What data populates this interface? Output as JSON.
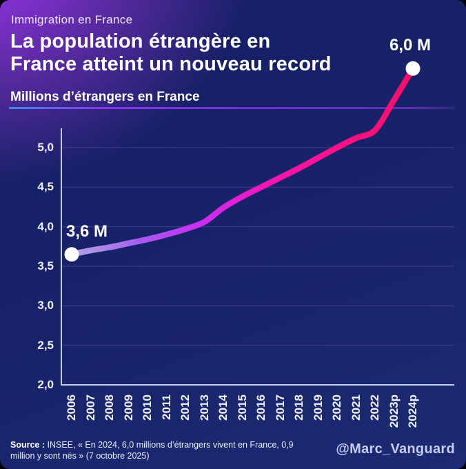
{
  "card": {
    "kicker": "Immigration en France",
    "title_line1": "La population étrangère en",
    "title_line2": "France atteint un nouveau record",
    "subtitle": "Millions d’étrangers en France",
    "source_label": "Source :",
    "source_text": " INSEE, « En 2024, 6,0 millions d’étrangers vivent en France, 0,9 million y sont nés » (7 octobre 2025)",
    "handle": "@Marc_Vanguard"
  },
  "chart_data": {
    "type": "line",
    "title": "Millions d’étrangers en France",
    "categories": [
      "2006",
      "2007",
      "2008",
      "2009",
      "2010",
      "2011",
      "2012",
      "2013",
      "2014",
      "2015",
      "2016",
      "2017",
      "2018",
      "2019",
      "2020",
      "2021",
      "2022",
      "2023p",
      "2024p"
    ],
    "values": [
      3.65,
      3.7,
      3.74,
      3.79,
      3.84,
      3.9,
      3.97,
      4.06,
      4.24,
      4.38,
      4.5,
      4.62,
      4.74,
      4.87,
      5.0,
      5.12,
      5.22,
      5.6,
      6.0
    ],
    "ytick_labels": [
      "5,0",
      "4,5",
      "4,0",
      "3,5",
      "3,0",
      "2,5",
      "2,0"
    ],
    "ytick_values": [
      5.0,
      4.5,
      4.0,
      3.5,
      3.0,
      2.5,
      2.0
    ],
    "ylim": [
      2.0,
      6.2
    ],
    "grid": true,
    "legend": "none",
    "annotations": [
      {
        "label": "3,6 M",
        "category": "2006",
        "value": 3.65
      },
      {
        "label": "6,0 M",
        "category": "2024p",
        "value": 6.0
      }
    ],
    "line_gradient": [
      "#b3a6e3",
      "#a55cf0",
      "#cb2df2",
      "#f715b5",
      "#ff1189",
      "#f50f67"
    ],
    "gradient_stops": [
      0,
      0.2,
      0.38,
      0.58,
      0.78,
      1
    ],
    "marker_color": "#ffffff",
    "axis_color": "#c5cdf0",
    "gridline_color": "#6a55c0",
    "background_navy": "#182369",
    "background_glow_purple": "#9c36df",
    "accent_rule_blue": "#3b8df0",
    "accent_rule_purple": "#6b2fd4",
    "handle_color": "#c7ccf4"
  }
}
